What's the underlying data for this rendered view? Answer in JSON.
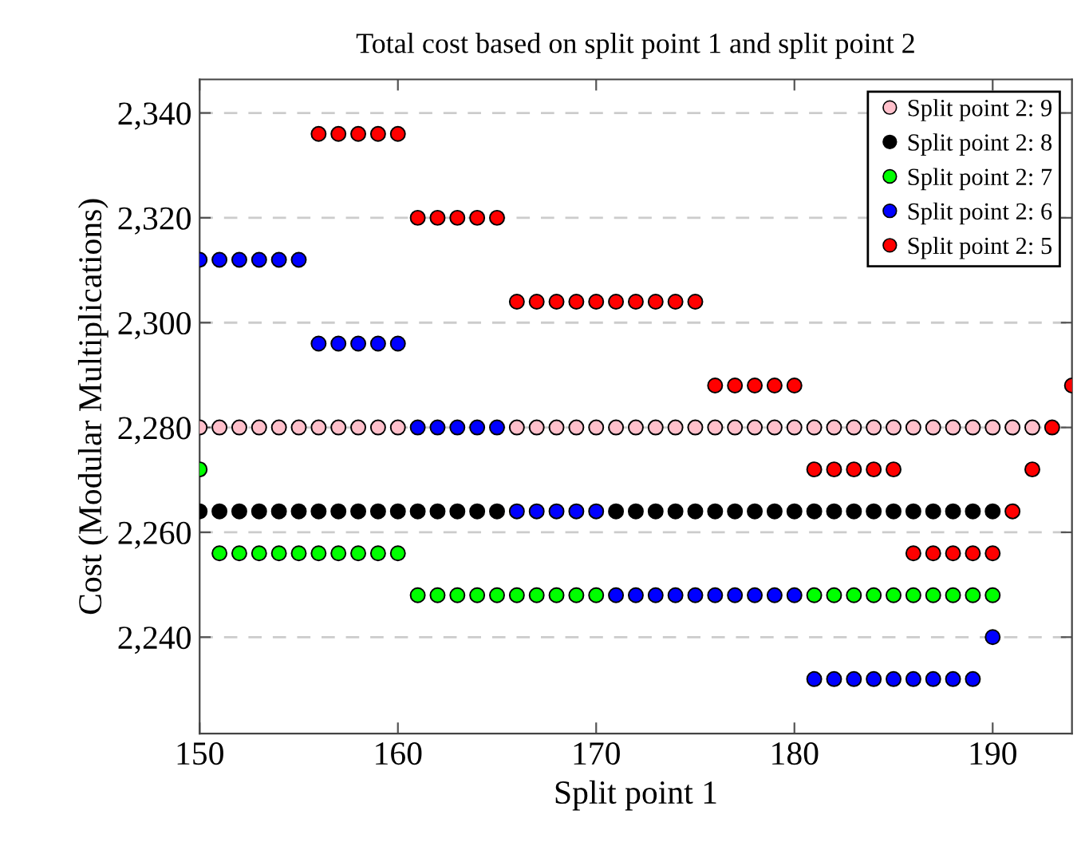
{
  "chart_data": {
    "type": "scatter",
    "title": "Total cost based on split point 1 and split point 2",
    "xlabel": "Split point 1",
    "ylabel": "Cost (Modular Multiplications)",
    "xlim": [
      150,
      194
    ],
    "ylim": [
      2221.6,
      2346.4
    ],
    "xticks": [
      150,
      160,
      170,
      180,
      190
    ],
    "yticks": [
      {
        "value": 2240,
        "label": "2,240"
      },
      {
        "value": 2260,
        "label": "2,260"
      },
      {
        "value": 2280,
        "label": "2,280"
      },
      {
        "value": 2300,
        "label": "2,300"
      },
      {
        "value": 2320,
        "label": "2,320"
      },
      {
        "value": 2340,
        "label": "2,340"
      }
    ],
    "grid": "y",
    "legend": "top right",
    "marker": "circle",
    "series": [
      {
        "name": "Split point 2: 9",
        "color": "#ffc0cb",
        "x": [
          150,
          151,
          152,
          153,
          154,
          155,
          156,
          157,
          158,
          159,
          160,
          166,
          167,
          168,
          169,
          170,
          171,
          172,
          173,
          174,
          175,
          176,
          177,
          178,
          179,
          180,
          181,
          182,
          183,
          184,
          185,
          186,
          187,
          188,
          189,
          190,
          191,
          192
        ],
        "values": [
          2280,
          2280,
          2280,
          2280,
          2280,
          2280,
          2280,
          2280,
          2280,
          2280,
          2280,
          2280,
          2280,
          2280,
          2280,
          2280,
          2280,
          2280,
          2280,
          2280,
          2280,
          2280,
          2280,
          2280,
          2280,
          2280,
          2280,
          2280,
          2280,
          2280,
          2280,
          2280,
          2280,
          2280,
          2280,
          2280,
          2280,
          2280
        ]
      },
      {
        "name": "Split point 2: 8",
        "color": "#000000",
        "x": [
          150,
          151,
          152,
          153,
          154,
          155,
          156,
          157,
          158,
          159,
          160,
          161,
          162,
          163,
          164,
          165,
          171,
          172,
          173,
          174,
          175,
          176,
          177,
          178,
          179,
          180,
          181,
          182,
          183,
          184,
          185,
          186,
          187,
          188,
          189,
          190
        ],
        "values": [
          2264,
          2264,
          2264,
          2264,
          2264,
          2264,
          2264,
          2264,
          2264,
          2264,
          2264,
          2264,
          2264,
          2264,
          2264,
          2264,
          2264,
          2264,
          2264,
          2264,
          2264,
          2264,
          2264,
          2264,
          2264,
          2264,
          2264,
          2264,
          2264,
          2264,
          2264,
          2264,
          2264,
          2264,
          2264,
          2264
        ]
      },
      {
        "name": "Split point 2: 7",
        "color": "#00ff00",
        "x": [
          150,
          151,
          152,
          153,
          154,
          155,
          156,
          157,
          158,
          159,
          160,
          161,
          162,
          163,
          164,
          165,
          166,
          167,
          168,
          169,
          170,
          181,
          182,
          183,
          184,
          185,
          186,
          187,
          188,
          189,
          190
        ],
        "values": [
          2272,
          2256,
          2256,
          2256,
          2256,
          2256,
          2256,
          2256,
          2256,
          2256,
          2256,
          2248,
          2248,
          2248,
          2248,
          2248,
          2248,
          2248,
          2248,
          2248,
          2248,
          2248,
          2248,
          2248,
          2248,
          2248,
          2248,
          2248,
          2248,
          2248,
          2248
        ]
      },
      {
        "name": "Split point 2: 6",
        "color": "#0000ff",
        "x": [
          150,
          151,
          152,
          153,
          154,
          155,
          156,
          157,
          158,
          159,
          160,
          161,
          162,
          163,
          164,
          165,
          166,
          167,
          168,
          169,
          170,
          171,
          172,
          173,
          174,
          175,
          176,
          177,
          178,
          179,
          180,
          181,
          182,
          183,
          184,
          185,
          186,
          187,
          188,
          189,
          190
        ],
        "values": [
          2312,
          2312,
          2312,
          2312,
          2312,
          2312,
          2296,
          2296,
          2296,
          2296,
          2296,
          2280,
          2280,
          2280,
          2280,
          2280,
          2264,
          2264,
          2264,
          2264,
          2264,
          2248,
          2248,
          2248,
          2248,
          2248,
          2248,
          2248,
          2248,
          2248,
          2248,
          2232,
          2232,
          2232,
          2232,
          2232,
          2232,
          2232,
          2232,
          2232,
          2240
        ]
      },
      {
        "name": "Split point 2: 5",
        "color": "#ff0000",
        "x": [
          156,
          157,
          158,
          159,
          160,
          161,
          162,
          163,
          164,
          165,
          166,
          167,
          168,
          169,
          170,
          171,
          172,
          173,
          174,
          175,
          176,
          177,
          178,
          179,
          180,
          181,
          182,
          183,
          184,
          185,
          186,
          187,
          188,
          189,
          190,
          191,
          192,
          193,
          194
        ],
        "values": [
          2336,
          2336,
          2336,
          2336,
          2336,
          2320,
          2320,
          2320,
          2320,
          2320,
          2304,
          2304,
          2304,
          2304,
          2304,
          2304,
          2304,
          2304,
          2304,
          2304,
          2288,
          2288,
          2288,
          2288,
          2288,
          2272,
          2272,
          2272,
          2272,
          2272,
          2256,
          2256,
          2256,
          2256,
          2256,
          2264,
          2272,
          2280,
          2288
        ]
      }
    ]
  }
}
